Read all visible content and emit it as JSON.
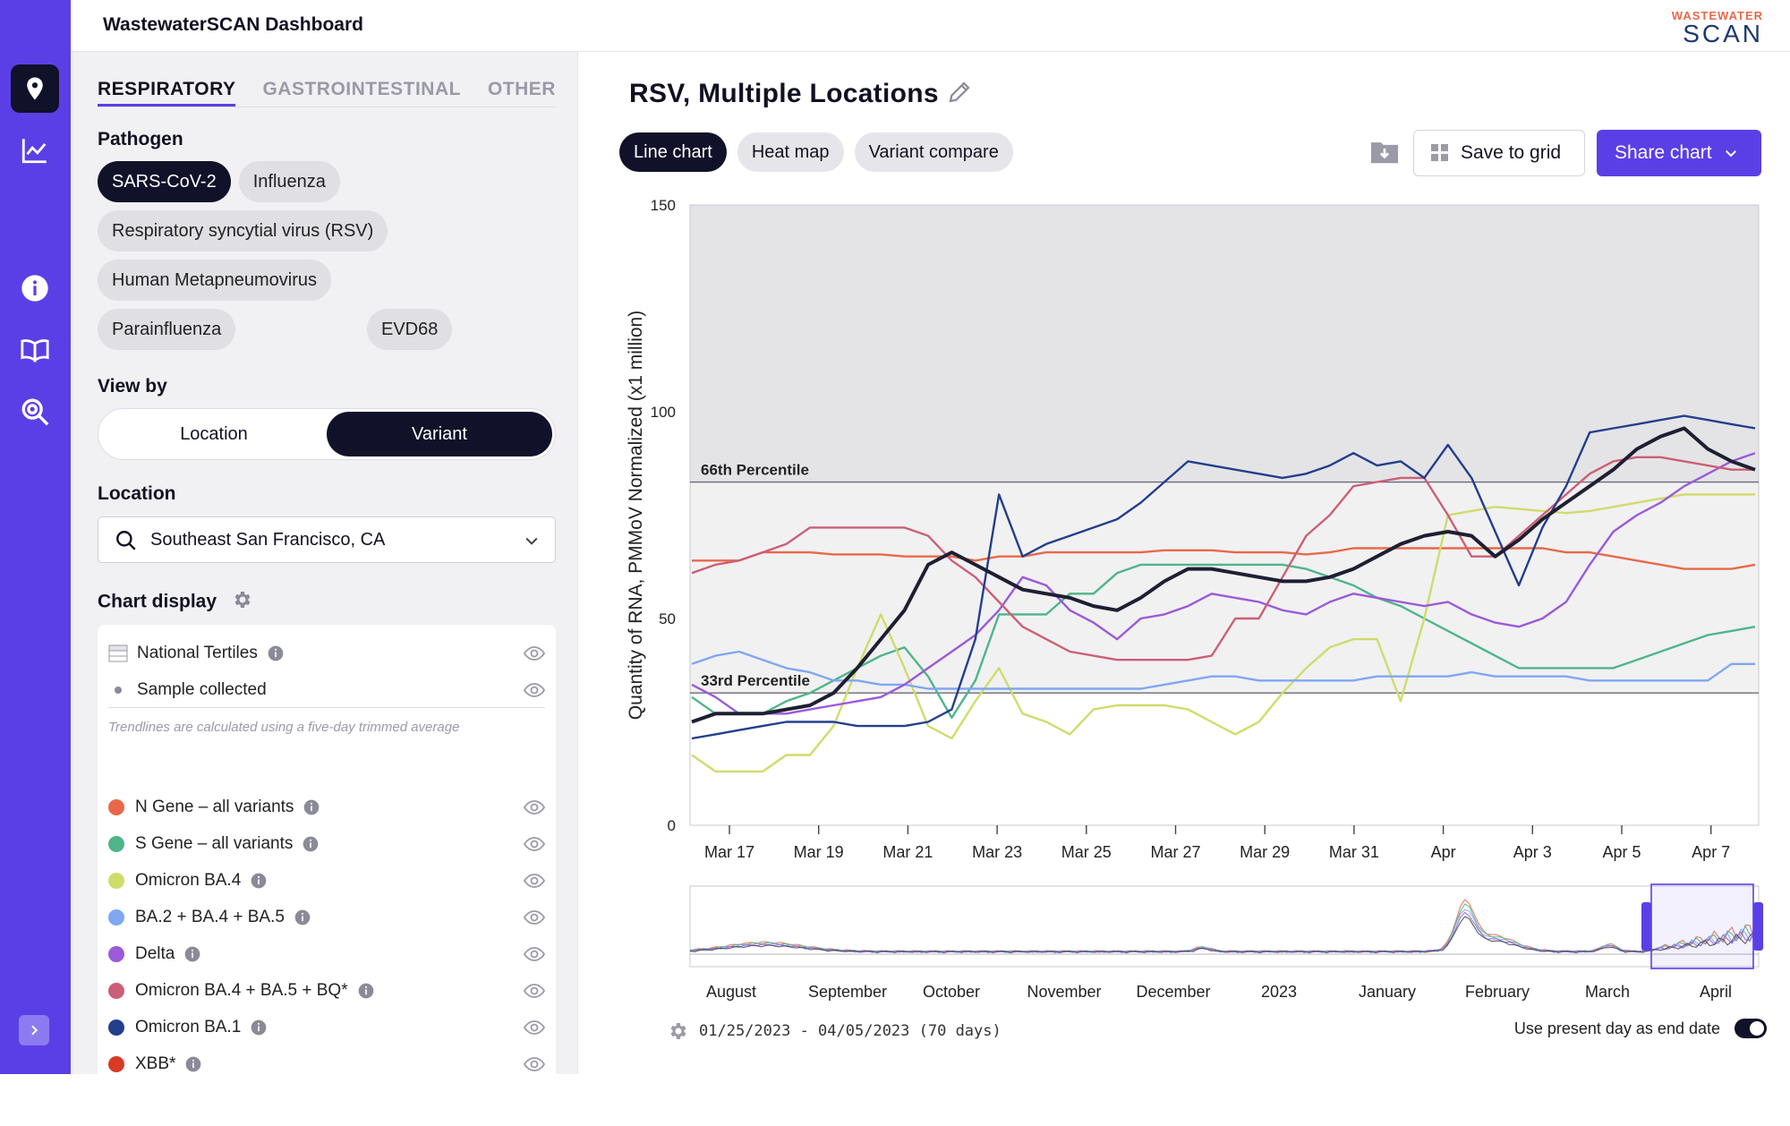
{
  "app": {
    "title": "WastewaterSCAN Dashboard",
    "logo_line1": "WASTEWATER",
    "logo_line2": "SCAN"
  },
  "rail": {
    "icons": [
      "map-pin-icon",
      "line-chart-icon",
      "info-icon",
      "book-icon",
      "search-zoom-icon",
      "expand-icon"
    ],
    "accent": "#5b3fe6"
  },
  "tabs": [
    "RESPIRATORY",
    "GASTROINTESTINAL",
    "OTHER"
  ],
  "pathogen": {
    "label": "Pathogen",
    "chips": [
      "SARS-CoV-2",
      "Influenza",
      "Respiratory syncytial virus (RSV)",
      "Human Metapneumovirus",
      "EVD68",
      "Parainfluenza"
    ],
    "selected": "SARS-CoV-2"
  },
  "view_by": {
    "label": "View by",
    "options": [
      "Location",
      "Variant"
    ],
    "selected": "Variant"
  },
  "location": {
    "label": "Location",
    "value": "Southeast San Francisco, CA"
  },
  "chart_display": {
    "label": "Chart display",
    "toggles": [
      {
        "label": "National Tertiles"
      },
      {
        "label": "Sample collected"
      }
    ],
    "note": "Trendlines are calculated using a five-day trimmed average",
    "series": [
      {
        "label": "N Gene – all variants",
        "color": "#e8694a"
      },
      {
        "label": "S Gene – all variants",
        "color": "#4fb58a"
      },
      {
        "label": "Omicron BA.4",
        "color": "#cfdc6a"
      },
      {
        "label": "BA.2 + BA.4 + BA.5",
        "color": "#7fa7f2"
      },
      {
        "label": "Delta",
        "color": "#9b5ad9"
      },
      {
        "label": "Omicron BA.4 + BA.5 + BQ*",
        "color": "#cc5f78"
      },
      {
        "label": "Omicron BA.1",
        "color": "#233f8c"
      },
      {
        "label": "XBB*",
        "color": "#d93a25"
      }
    ]
  },
  "chart": {
    "title": "RSV, Multiple Locations",
    "types": [
      "Line chart",
      "Heat map",
      "Variant compare"
    ],
    "selected_type": "Line chart",
    "save_label": "Save to grid",
    "share_label": "Share chart",
    "range_text": "01/25/2023 - 04/05/2023 (70 days)",
    "present_day_label": "Use present day as end date"
  },
  "chart_data": {
    "type": "line",
    "ylabel": "Quantity of RNA, PMMoV Normalized (x1 million)",
    "ylim": [
      0,
      150
    ],
    "yticks": [
      0,
      50,
      100,
      150
    ],
    "xticks": [
      "Mar 17",
      "Mar 19",
      "Mar 21",
      "Mar 23",
      "Mar 25",
      "Mar 27",
      "Mar 29",
      "Mar 31",
      "Apr",
      "Apr 3",
      "Apr 5",
      "Apr 7"
    ],
    "bands": [
      {
        "label": "66th Percentile",
        "value": 83
      },
      {
        "label": "33rd Percentile",
        "value": 32
      }
    ],
    "x": [
      16,
      16.5,
      17,
      17.5,
      18,
      18.5,
      19,
      19.5,
      20,
      20.5,
      21,
      21.5,
      22,
      22.5,
      23,
      23.5,
      24,
      24.5,
      25,
      25.5,
      26,
      26.5,
      27,
      27.5,
      28,
      28.5,
      29,
      29.5,
      30,
      30.5,
      31,
      31.5,
      32,
      32.5,
      33,
      33.5,
      34,
      34.5,
      35,
      35.5,
      36,
      36.5,
      37,
      37.5,
      38,
      38.5
    ],
    "series": [
      {
        "color": "#e8694a",
        "values": [
          64,
          64,
          64,
          66,
          66,
          66,
          65.5,
          65.5,
          65.5,
          65,
          65,
          65,
          64,
          65,
          65,
          66,
          66,
          66,
          66,
          66,
          66.5,
          66.5,
          66.5,
          66,
          66,
          66,
          65.5,
          66,
          67,
          67,
          67,
          67,
          67,
          67,
          67,
          67,
          67,
          66,
          66,
          65,
          64,
          63,
          62,
          62,
          62,
          63
        ]
      },
      {
        "color": "#4fb58a",
        "values": [
          31,
          27,
          27,
          27,
          30,
          32,
          35,
          38,
          41,
          43,
          36,
          26,
          35,
          51,
          51,
          51,
          56,
          56,
          61,
          63,
          63,
          63,
          63,
          63,
          63,
          63,
          62,
          60,
          58,
          55,
          53,
          50,
          47,
          44,
          41,
          38,
          38,
          38,
          38,
          38,
          40,
          42,
          44,
          46,
          47,
          48
        ]
      },
      {
        "color": "#cfdc6a",
        "values": [
          17,
          13,
          13,
          13,
          17,
          17,
          24,
          38,
          51,
          38,
          24,
          21,
          30,
          38,
          27,
          25,
          22,
          28,
          29,
          29,
          29,
          28,
          25,
          22,
          25,
          32,
          38,
          43,
          45,
          45,
          30,
          50,
          75,
          76,
          77,
          76.5,
          76,
          75.5,
          76,
          77,
          78,
          79,
          80,
          80,
          80,
          80
        ]
      },
      {
        "color": "#7fa7f2",
        "values": [
          39,
          41,
          42,
          40,
          38,
          37,
          35,
          35,
          34,
          34,
          33,
          33,
          33,
          33,
          33,
          33,
          33,
          33,
          33,
          33,
          34,
          35,
          36,
          36,
          35,
          35,
          35,
          35,
          35,
          36,
          36,
          36,
          36,
          37,
          36,
          36,
          36,
          36,
          35,
          35,
          35,
          35,
          35,
          35,
          39,
          39
        ]
      },
      {
        "color": "#9b5ad9",
        "values": [
          34,
          31,
          27,
          27,
          27,
          28,
          29,
          30,
          31,
          34,
          38,
          42,
          46,
          52,
          60,
          58,
          52,
          49,
          45,
          50,
          51,
          53,
          56,
          55,
          54,
          52,
          51,
          54,
          56,
          55,
          54,
          53,
          54,
          51,
          49,
          48,
          50,
          54,
          63,
          71,
          75,
          78,
          82,
          85,
          88,
          90
        ]
      },
      {
        "color": "#cc5f78",
        "values": [
          61,
          63,
          64,
          66,
          68,
          72,
          72,
          72,
          72,
          72,
          70,
          64,
          60,
          54,
          48,
          45,
          42,
          41,
          40,
          40,
          40,
          40,
          41,
          50,
          50,
          60,
          70,
          75,
          82,
          83,
          84,
          84,
          75,
          65,
          65,
          70,
          75,
          80,
          85,
          88,
          89,
          89,
          88,
          87,
          86,
          86
        ]
      },
      {
        "color": "#233f8c",
        "values": [
          21,
          22,
          23,
          24,
          25,
          25,
          25,
          24,
          24,
          24,
          25,
          28,
          45,
          80,
          65,
          68,
          70,
          72,
          74,
          78,
          83,
          88,
          87,
          86,
          85,
          84,
          85,
          87,
          90,
          87,
          88,
          84,
          92,
          84,
          71,
          58,
          72,
          82,
          95,
          96,
          97,
          98,
          99,
          98,
          97,
          96
        ]
      },
      {
        "color": "#1f1f33",
        "values": [
          25,
          27,
          27,
          27,
          28,
          29,
          32,
          38,
          45,
          52,
          63,
          66,
          63,
          60,
          57,
          56,
          55,
          53,
          52,
          55,
          59,
          62,
          62,
          61,
          60,
          59,
          59,
          60,
          62,
          65,
          68,
          70,
          71,
          70,
          65,
          69,
          74,
          78,
          82,
          86,
          91,
          94,
          96,
          91,
          88,
          86
        ]
      }
    ],
    "navigator": {
      "labels": [
        "August",
        "September",
        "October",
        "November",
        "December",
        "2023",
        "January",
        "February",
        "March",
        "April"
      ]
    }
  }
}
